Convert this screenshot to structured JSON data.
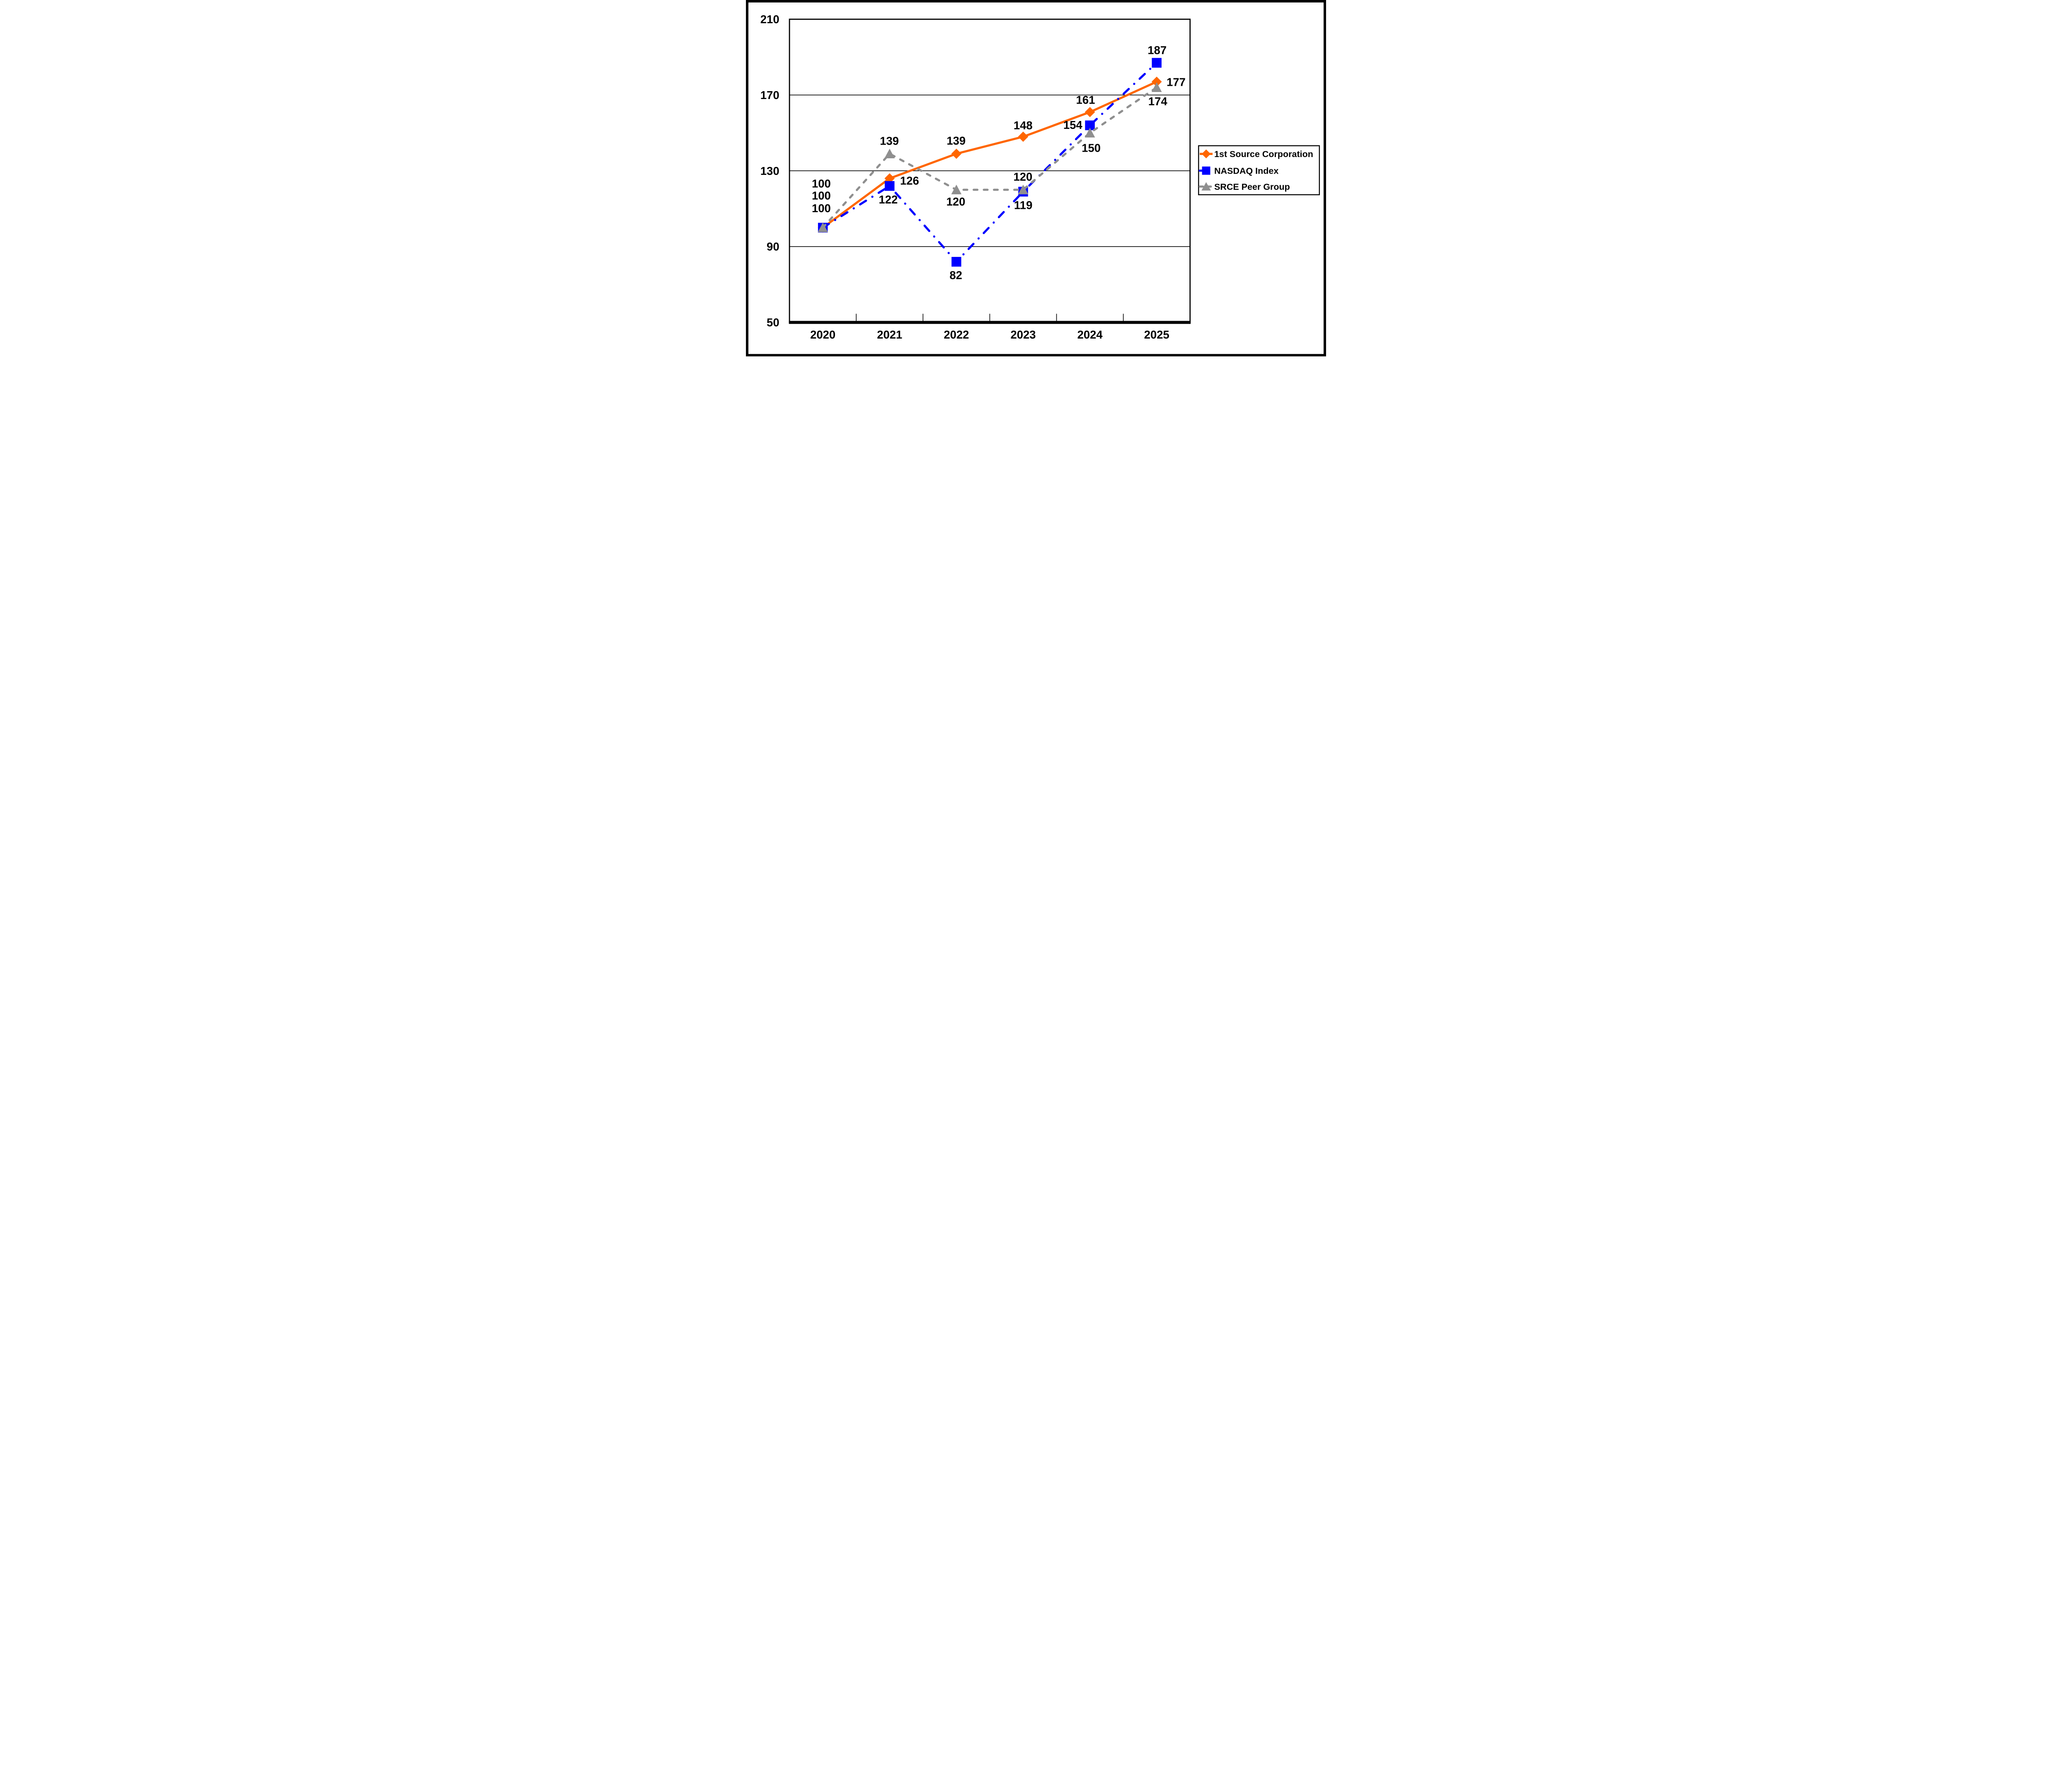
{
  "figure": {
    "background_color": "#FFFFFF",
    "frame_color": "#000000",
    "description": "Total return performance line chart comparing 1st Source Corporation, NASDAQ Index and SRCE Peer Group, indexed to 100 in 2020"
  },
  "legend": {
    "position": "right",
    "items": [
      {
        "label": "1st Source Corporation",
        "marker": "diamond",
        "color": "#FF6600",
        "line_style": "solid"
      },
      {
        "label": "NASDAQ Index",
        "marker": "square",
        "color": "#0000FF",
        "line_style": "dash-dot"
      },
      {
        "label": "SRCE Peer Group",
        "marker": "triangle",
        "color": "#8F8F8F",
        "line_style": "dashed"
      }
    ]
  },
  "chart_data": {
    "type": "line",
    "title": "",
    "xlabel": "",
    "ylabel": "",
    "categories": [
      "2020",
      "2021",
      "2022",
      "2023",
      "2024",
      "2025"
    ],
    "series": [
      {
        "name": "1st Source Corporation",
        "values": [
          100,
          126,
          139,
          148,
          161,
          177
        ],
        "color": "#FF6600",
        "marker": "diamond",
        "line_style": "solid"
      },
      {
        "name": "NASDAQ Index",
        "values": [
          100,
          122,
          82,
          119,
          154,
          187
        ],
        "color": "#0000FF",
        "marker": "square",
        "line_style": "dash-dot"
      },
      {
        "name": "SRCE Peer Group",
        "values": [
          100,
          139,
          120,
          120,
          150,
          174
        ],
        "color": "#8F8F8F",
        "marker": "triangle",
        "line_style": "dashed"
      }
    ],
    "ylim": [
      50,
      210
    ],
    "y_ticks": [
      210,
      170,
      130,
      90,
      50
    ],
    "grid": "horizontal",
    "gridline_color": "#000000",
    "legend_position": "right",
    "data_labels": true
  }
}
